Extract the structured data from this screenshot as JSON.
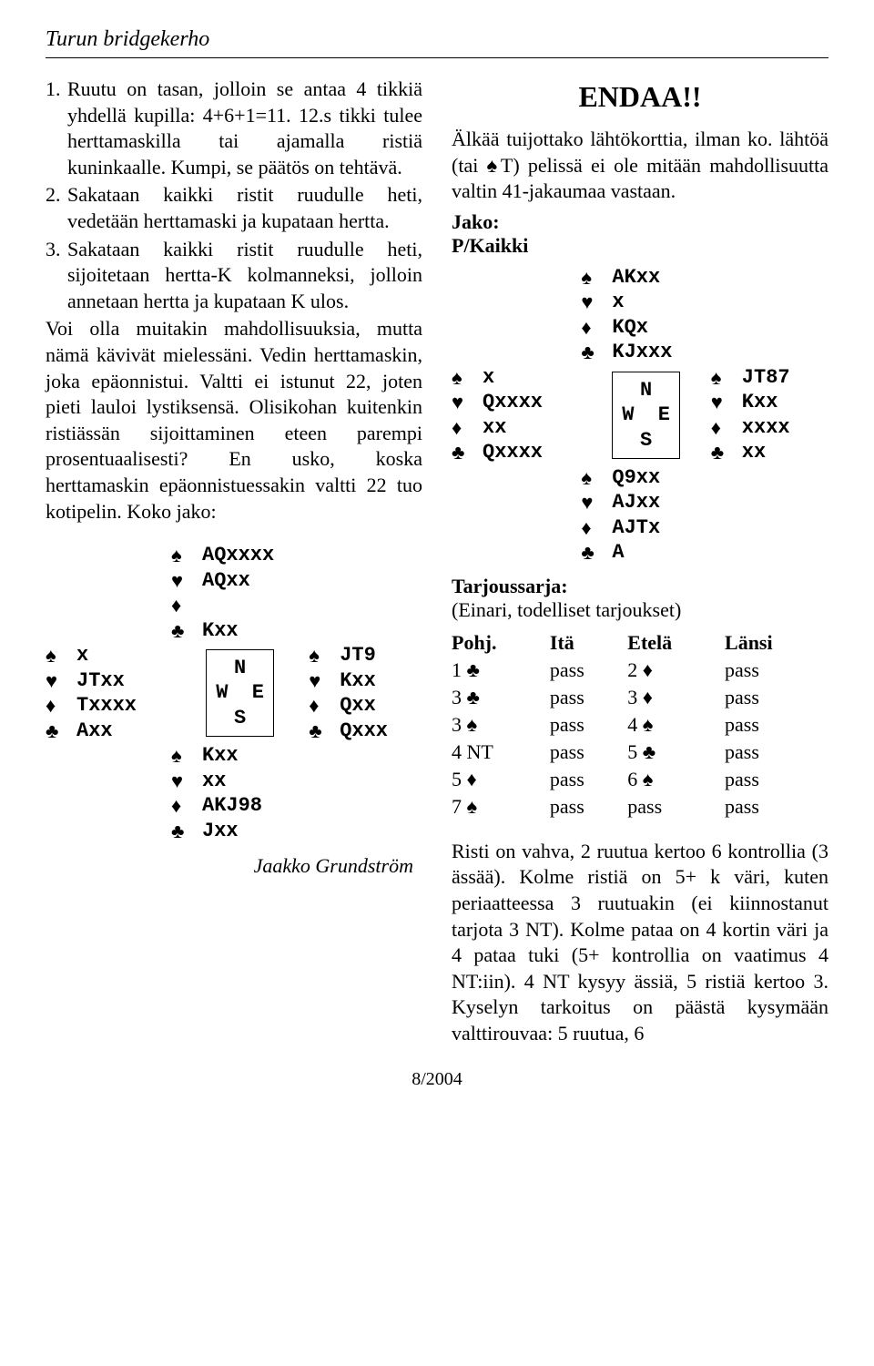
{
  "header": {
    "title": "Turun bridgekerho"
  },
  "left": {
    "list": [
      {
        "n": "1.",
        "t": "Ruutu on tasan, jolloin se antaa 4 tikkiä yhdellä kupilla: 4+6+1=11. 12.s tikki tulee herttamaskilla tai ajamalla ristiä kuninkaalle. Kumpi, se päätös on tehtävä."
      },
      {
        "n": "2.",
        "t": "Sakataan kaikki ristit ruudulle heti, vedetään herttamaski ja kupataan hertta."
      },
      {
        "n": "3.",
        "t": "Sakataan kaikki ristit ruudulle heti, sijoitetaan hertta-K kolmanneksi, jolloin annetaan hertta ja kupataan K ulos."
      }
    ],
    "para": "Voi olla muitakin mahdollisuuksia, mutta nämä kävivät mielessäni. Vedin herttamaskin, joka epäonnistui. Valtti ei istunut 22, joten pieti lauloi lystiksensä. Olisikohan kuitenkin ristiässän sijoittaminen eteen parempi prosentuaalisesti? En usko, koska herttamaskin epäonnistuessakin valtti 22 tuo kotipelin. Koko jako:"
  },
  "deal1": {
    "north": {
      "s": "AQxxxx",
      "h": "AQxx",
      "d": "",
      "c": "Kxx"
    },
    "west": {
      "s": "x",
      "h": "JTxx",
      "d": "Txxxx",
      "c": "Axx"
    },
    "east": {
      "s": "JT9",
      "h": "Kxx",
      "d": "Qxx",
      "c": "Qxxx"
    },
    "south": {
      "s": "Kxx",
      "h": "xx",
      "d": "AKJ98",
      "c": "Jxx"
    },
    "compass": {
      "n": "N",
      "w": "W",
      "e": "E",
      "s": "S"
    }
  },
  "author": "Jaakko Grundström",
  "right": {
    "endaa": "ENDAA!!",
    "para1": "Älkää tuijottako lähtökorttia, ilman ko. lähtöä (tai ♠T) pelissä ei ole mitään mahdollisuutta valtin 41-jakaumaa vastaan.",
    "jako": "Jako:",
    "pkaikki": "P/Kaikki"
  },
  "deal2": {
    "north": {
      "s": "AKxx",
      "h": "x",
      "d": "KQx",
      "c": "KJxxx"
    },
    "west": {
      "s": "x",
      "h": "Qxxxx",
      "d": "xx",
      "c": "Qxxxx"
    },
    "east": {
      "s": "JT87",
      "h": "Kxx",
      "d": "xxxx",
      "c": "xx"
    },
    "south": {
      "s": "Q9xx",
      "h": "AJxx",
      "d": "AJTx",
      "c": "A"
    },
    "compass": {
      "n": "N",
      "w": "W",
      "e": "E",
      "s": "S"
    }
  },
  "tarjous": {
    "head_bold": "Tarjoussarja:",
    "head_rest": "(Einari, todelliset tarjoukset)",
    "cols": [
      "Pohj.",
      "Itä",
      "Etelä",
      "Länsi"
    ],
    "rows": [
      [
        "1 ♣",
        "pass",
        "2 ♦",
        "pass"
      ],
      [
        "3 ♣",
        "pass",
        "3 ♦",
        "pass"
      ],
      [
        "3 ♠",
        "pass",
        "4 ♠",
        "pass"
      ],
      [
        "4 NT",
        "pass",
        "5 ♣",
        "pass"
      ],
      [
        "5 ♦",
        "pass",
        "6 ♠",
        "pass"
      ],
      [
        "7 ♠",
        "pass",
        "pass",
        "pass"
      ]
    ]
  },
  "right_para2": "Risti on vahva, 2 ruutua kertoo 6 kontrollia (3 ässää). Kolme ristiä on 5+ k väri, kuten periaatteessa 3 ruutuakin (ei kiinnostanut tarjota 3 NT). Kolme pataa on 4 kortin väri ja 4 pataa tuki (5+ kontrollia on vaatimus 4 NT:iin). 4 NT kysyy ässiä, 5 ristiä kertoo 3. Kyselyn tarkoitus on päästä kysymään valttirouvaa: 5 ruutua, 6",
  "footer": "8/2004",
  "suits": {
    "s": "♠",
    "h": "♥",
    "d": "♦",
    "c": "♣"
  }
}
